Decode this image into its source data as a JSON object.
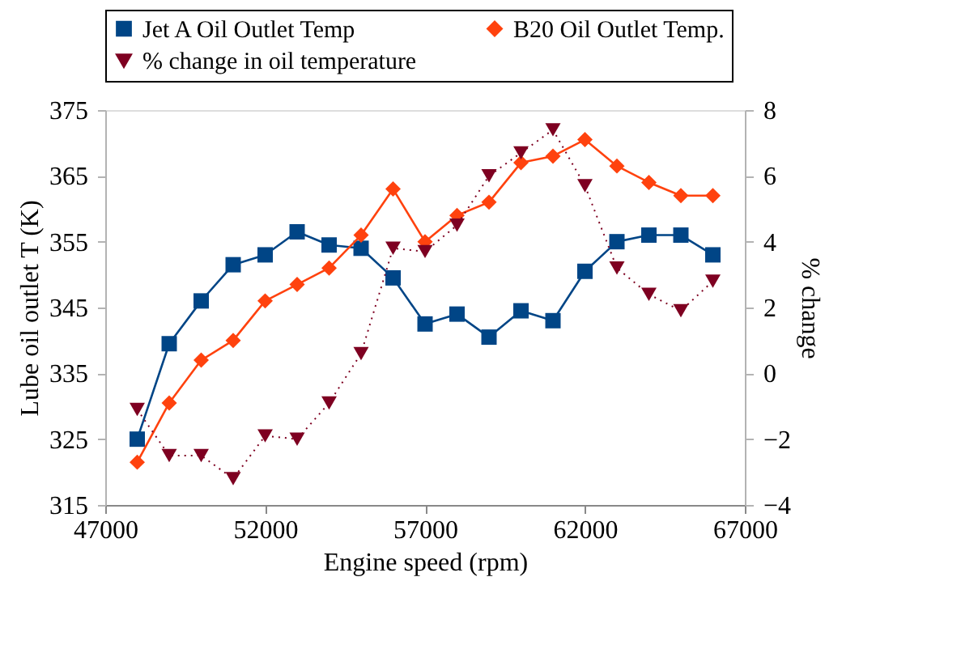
{
  "chart_data": {
    "type": "line",
    "xlabel": "Engine speed (rpm)",
    "ylabel": "Lube oil outlet T  (K)",
    "y2label": "% change",
    "x": [
      48000,
      49000,
      50000,
      51000,
      52000,
      53000,
      54000,
      55000,
      56000,
      57000,
      58000,
      59000,
      60000,
      61000,
      62000,
      63000,
      64000,
      65000,
      66000
    ],
    "series": [
      {
        "name": "Jet A Oil Outlet Temp",
        "color": "#004586",
        "marker": "square",
        "line_style": "solid",
        "values": [
          325,
          339.5,
          346,
          351.5,
          353,
          356.5,
          354.5,
          354,
          349.5,
          342.5,
          344,
          340.5,
          344.5,
          343,
          350.5,
          355,
          356,
          356,
          353
        ]
      },
      {
        "name": "B20 Oil Outlet Temp.",
        "color": "#ff420e",
        "marker": "diamond",
        "line_style": "solid",
        "values": [
          321.5,
          330.5,
          337,
          340,
          346,
          348.5,
          351,
          356,
          363,
          355,
          359,
          361,
          367,
          368,
          370.5,
          366.5,
          364,
          362,
          362
        ]
      },
      {
        "name": "% change in oil temperature",
        "color": "#7e0021",
        "marker": "triangle",
        "line_style": "dotted",
        "axis": "y2",
        "values": [
          -1.1,
          -2.5,
          -2.5,
          -3.2,
          -1.9,
          -2.0,
          -0.9,
          0.6,
          3.8,
          3.7,
          4.5,
          6.0,
          6.7,
          7.4,
          5.7,
          3.2,
          2.4,
          1.9,
          2.8
        ]
      }
    ],
    "xlim": [
      47000,
      67000
    ],
    "xticks": [
      47000,
      52000,
      57000,
      62000,
      67000
    ],
    "ylim": [
      315,
      375
    ],
    "yticks": [
      315,
      325,
      335,
      345,
      355,
      365,
      375
    ],
    "y2lim": [
      -4,
      8
    ],
    "y2ticks": [
      -4,
      -2,
      0,
      2,
      4,
      6,
      8
    ],
    "grid": false,
    "legend": "top"
  }
}
